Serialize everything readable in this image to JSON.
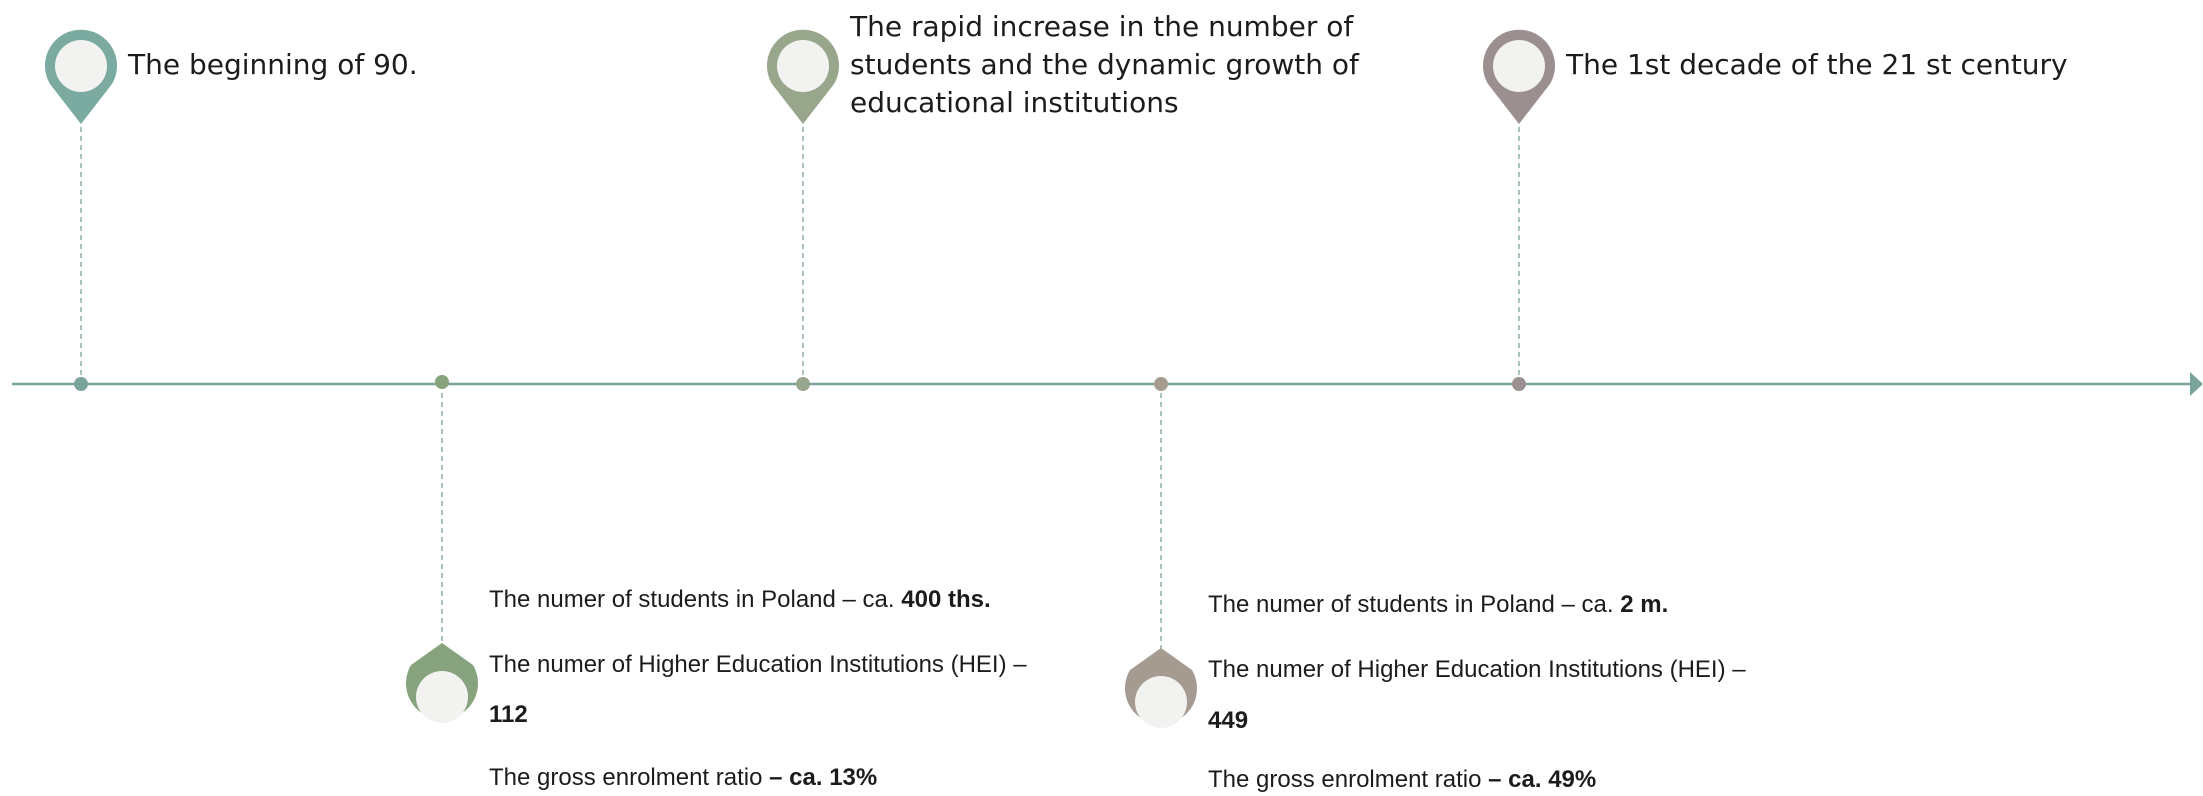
{
  "colors": {
    "axis": "#7aa39c",
    "pin_teal": "#7aaaa0",
    "pin_green": "#86a37e",
    "pin_olive": "#98a68c",
    "pin_taupe": "#a59b90",
    "pin_mauve": "#9c8f8f",
    "pin_fill": "#f2f3f1"
  },
  "events": {
    "e1": {
      "title": "The beginning of 90."
    },
    "e2": {
      "title": "The rapid increase in the number of students and the dynamic growth of educational institutions"
    },
    "e3": {
      "title": "The 1st decade of the 21 st century"
    }
  },
  "facts": {
    "f1": {
      "students_text": "The numer of students in Poland – ca.",
      "students_value": "400 ths.",
      "hei_text": "The numer of Higher Education Institutions (HEI) –",
      "hei_value": "112",
      "ratio_text": "The gross enrolment ratio",
      "ratio_value": "– ca. 13%"
    },
    "f2": {
      "students_text": "The numer of students in Poland – ca.",
      "students_value": "2 m.",
      "hei_text": "The numer of Higher Education Institutions (HEI) –",
      "hei_value": "449",
      "ratio_text": "The gross enrolment ratio",
      "ratio_value": "– ca. 49%"
    }
  }
}
